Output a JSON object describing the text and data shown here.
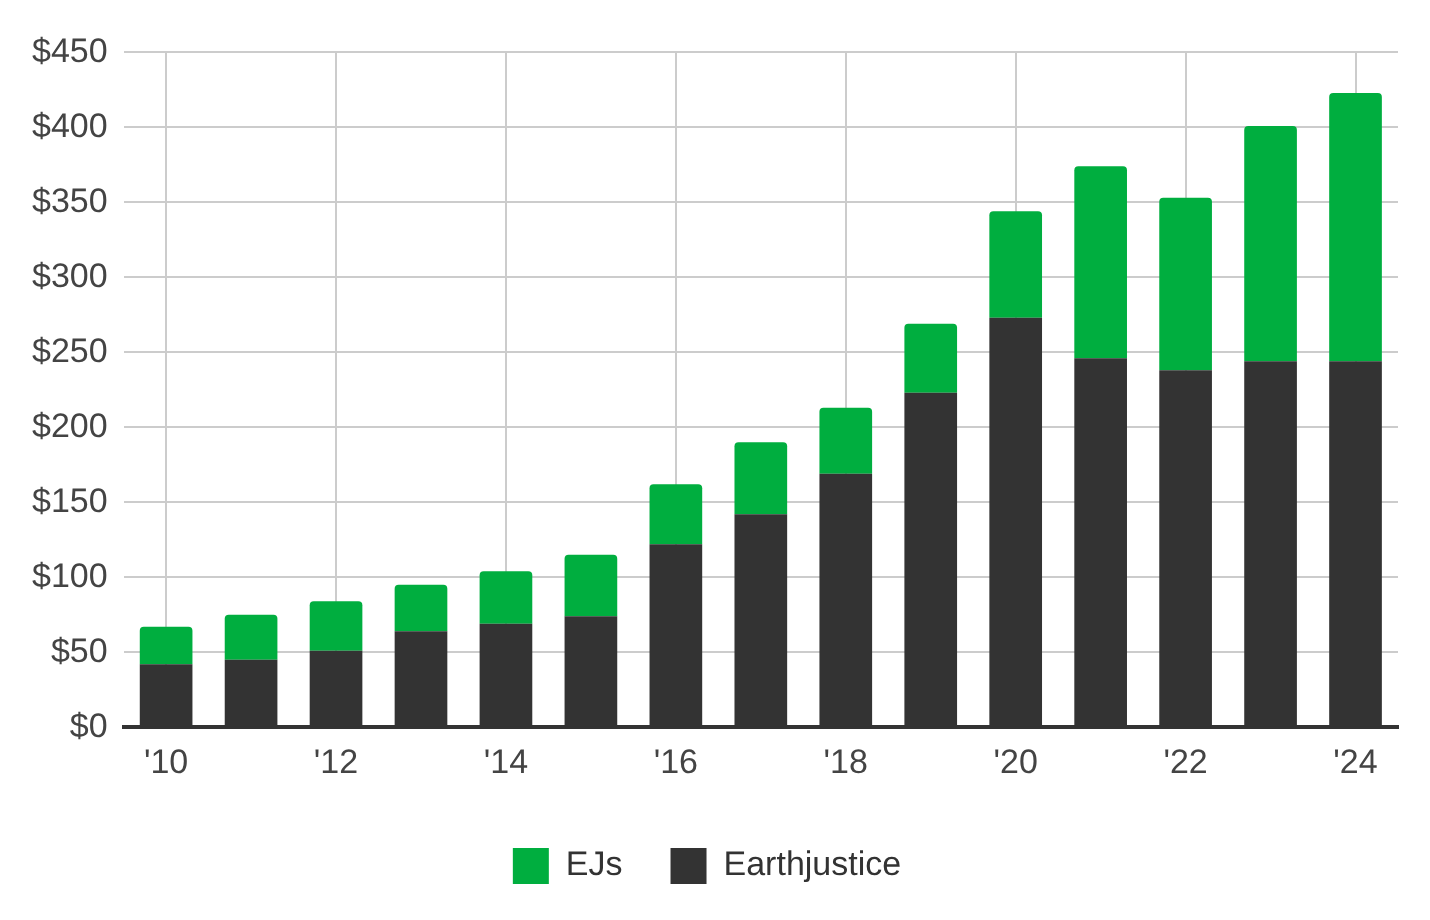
{
  "chart_data": {
    "type": "bar",
    "stacked": true,
    "categories": [
      "'10",
      null,
      "'12",
      null,
      "'14",
      null,
      "'16",
      null,
      "'18",
      null,
      "'20",
      null,
      "'22",
      null,
      "'24"
    ],
    "series": [
      {
        "name": "Earthjustice",
        "color": "#333333",
        "values": [
          42,
          45,
          51,
          64,
          69,
          74,
          122,
          142,
          169,
          223,
          273,
          246,
          238,
          244,
          244
        ]
      },
      {
        "name": "EJs",
        "color": "#00ae3f",
        "values": [
          25,
          30,
          33,
          31,
          35,
          41,
          40,
          48,
          44,
          46,
          71,
          128,
          115,
          157,
          179
        ]
      }
    ],
    "ylim": [
      0,
      450
    ],
    "yticks": [
      {
        "value": 0,
        "label": "$0"
      },
      {
        "value": 50,
        "label": "$50"
      },
      {
        "value": 100,
        "label": "$100"
      },
      {
        "value": 150,
        "label": "$150"
      },
      {
        "value": 200,
        "label": "$200"
      },
      {
        "value": 250,
        "label": "$250"
      },
      {
        "value": 300,
        "label": "$300"
      },
      {
        "value": 350,
        "label": "$350"
      },
      {
        "value": 400,
        "label": "$400"
      },
      {
        "value": 450,
        "label": "$450"
      }
    ],
    "grid": true,
    "legend": "bottom"
  }
}
